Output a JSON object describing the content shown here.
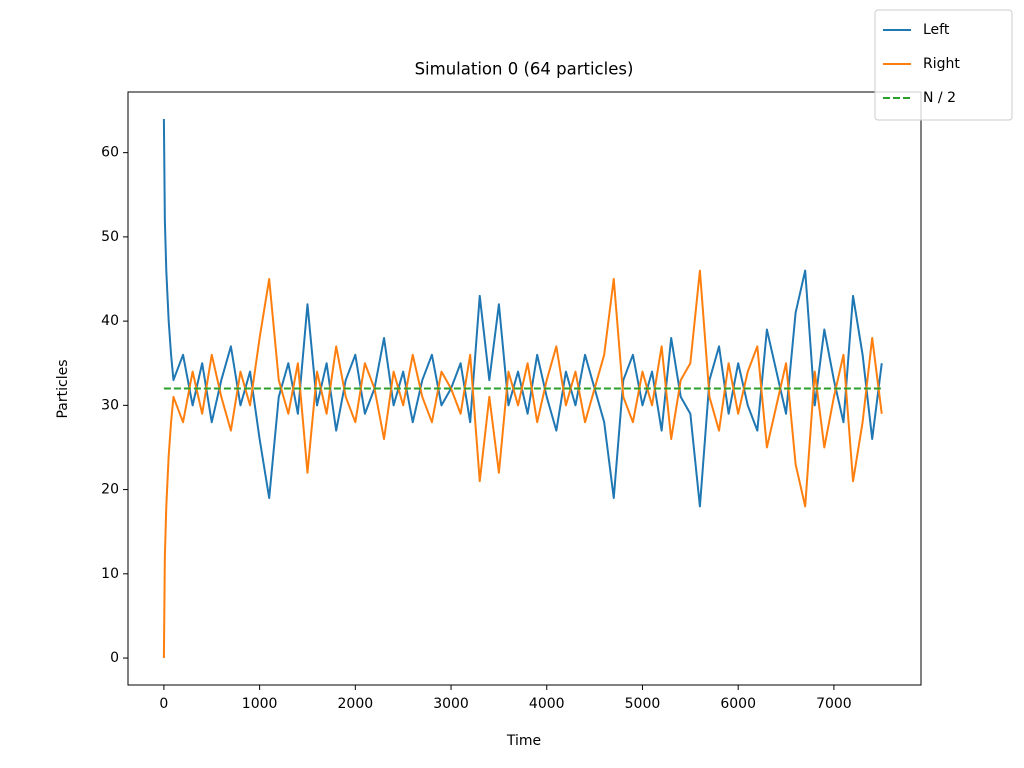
{
  "chart_data": {
    "type": "line",
    "title": "Simulation 0 (64 particles)",
    "x_label": "Time",
    "y_label": "Particles",
    "x": [
      0,
      10,
      25,
      50,
      75,
      100,
      200,
      300,
      400,
      500,
      600,
      700,
      800,
      900,
      1000,
      1100,
      1200,
      1300,
      1400,
      1500,
      1600,
      1700,
      1800,
      1900,
      2000,
      2100,
      2200,
      2300,
      2400,
      2500,
      2600,
      2700,
      2800,
      2900,
      3000,
      3100,
      3200,
      3300,
      3400,
      3500,
      3600,
      3700,
      3800,
      3900,
      4000,
      4100,
      4200,
      4300,
      4400,
      4500,
      4600,
      4700,
      4800,
      4900,
      5000,
      5100,
      5200,
      5300,
      5400,
      5500,
      5600,
      5700,
      5800,
      5900,
      6000,
      6100,
      6200,
      6300,
      6400,
      6500,
      6600,
      6700,
      6800,
      6900,
      7000,
      7100,
      7200,
      7300,
      7400,
      7500
    ],
    "series": [
      {
        "name": "Left",
        "color": "#1f77b4",
        "dashed": false,
        "values": [
          64,
          52,
          46,
          40,
          36,
          33,
          36,
          30,
          35,
          28,
          33,
          37,
          30,
          34,
          26,
          19,
          31,
          35,
          29,
          42,
          30,
          35,
          27,
          33,
          36,
          29,
          32,
          38,
          30,
          34,
          28,
          33,
          36,
          30,
          32,
          35,
          28,
          43,
          33,
          42,
          30,
          34,
          29,
          36,
          31,
          27,
          34,
          30,
          36,
          32,
          28,
          19,
          33,
          36,
          30,
          34,
          27,
          38,
          31,
          29,
          18,
          33,
          37,
          29,
          35,
          30,
          27,
          39,
          34,
          29,
          41,
          46,
          30,
          39,
          33,
          28,
          43,
          36,
          26,
          35
        ]
      },
      {
        "name": "Right",
        "color": "#ff7f0e",
        "dashed": false,
        "values": [
          0,
          12,
          18,
          24,
          28,
          31,
          28,
          34,
          29,
          36,
          31,
          27,
          34,
          30,
          38,
          45,
          33,
          29,
          35,
          22,
          34,
          29,
          37,
          31,
          28,
          35,
          32,
          26,
          34,
          30,
          36,
          31,
          28,
          34,
          32,
          29,
          36,
          21,
          31,
          22,
          34,
          30,
          35,
          28,
          33,
          37,
          30,
          34,
          28,
          32,
          36,
          45,
          31,
          28,
          34,
          30,
          37,
          26,
          33,
          35,
          46,
          31,
          27,
          35,
          29,
          34,
          37,
          25,
          30,
          35,
          23,
          18,
          34,
          25,
          31,
          36,
          21,
          28,
          38,
          29
        ]
      },
      {
        "name": "N / 2",
        "color": "#2ca02c",
        "dashed": true,
        "x": [
          0,
          7500
        ],
        "values": [
          32,
          32
        ]
      }
    ],
    "xlim": [
      -375,
      7910
    ],
    "ylim": [
      -3.2,
      67.2
    ],
    "xticks": [
      0,
      1000,
      2000,
      3000,
      4000,
      5000,
      6000,
      7000
    ],
    "yticks": [
      0,
      10,
      20,
      30,
      40,
      50,
      60
    ],
    "grid": false,
    "legend": "upper right"
  }
}
